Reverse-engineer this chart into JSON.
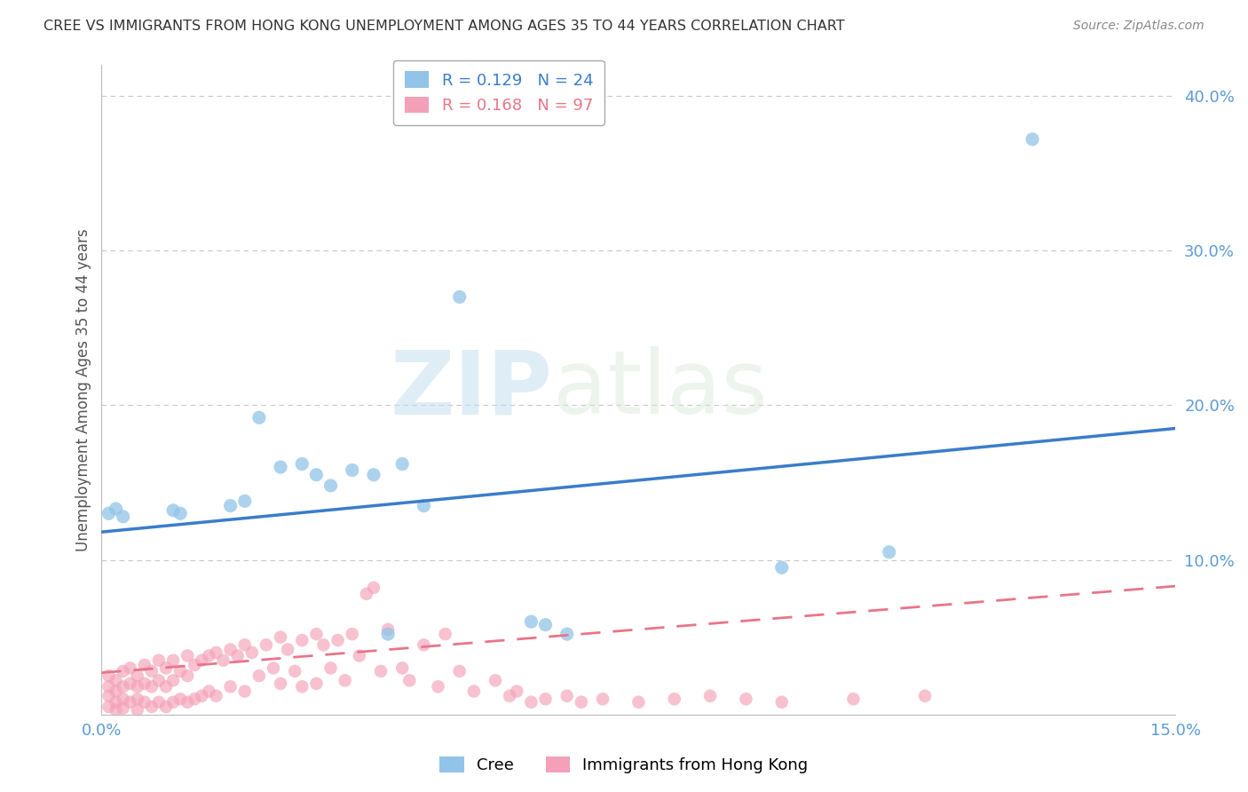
{
  "title": "CREE VS IMMIGRANTS FROM HONG KONG UNEMPLOYMENT AMONG AGES 35 TO 44 YEARS CORRELATION CHART",
  "source": "Source: ZipAtlas.com",
  "ylabel": "Unemployment Among Ages 35 to 44 years",
  "xlim": [
    0.0,
    0.15
  ],
  "ylim": [
    0.0,
    0.42
  ],
  "xtick_vals": [
    0.0,
    0.05,
    0.1,
    0.15
  ],
  "xtick_labels": [
    "0.0%",
    "",
    "",
    "15.0%"
  ],
  "ytick_vals": [
    0.0,
    0.1,
    0.2,
    0.3,
    0.4
  ],
  "ytick_labels": [
    "",
    "10.0%",
    "20.0%",
    "30.0%",
    "40.0%"
  ],
  "background_color": "#ffffff",
  "title_color": "#333333",
  "grid_color": "#c8c8c8",
  "cree_color": "#91c4e8",
  "hk_color": "#f4a0b8",
  "cree_line_color": "#3a7dc9",
  "hk_line_color": "#e8758a",
  "cree_R": 0.129,
  "cree_N": 24,
  "hk_R": 0.168,
  "hk_N": 97,
  "cree_scatter_x": [
    0.001,
    0.002,
    0.003,
    0.01,
    0.011,
    0.018,
    0.02,
    0.022,
    0.025,
    0.028,
    0.03,
    0.032,
    0.035,
    0.038,
    0.04,
    0.042,
    0.045,
    0.05,
    0.06,
    0.062,
    0.065,
    0.095,
    0.11,
    0.13
  ],
  "cree_scatter_y": [
    0.13,
    0.133,
    0.128,
    0.132,
    0.13,
    0.135,
    0.138,
    0.192,
    0.16,
    0.162,
    0.155,
    0.148,
    0.158,
    0.155,
    0.052,
    0.162,
    0.135,
    0.27,
    0.06,
    0.058,
    0.052,
    0.095,
    0.105,
    0.372
  ],
  "hk_scatter_x": [
    0.001,
    0.001,
    0.001,
    0.001,
    0.002,
    0.002,
    0.002,
    0.002,
    0.003,
    0.003,
    0.003,
    0.003,
    0.004,
    0.004,
    0.004,
    0.005,
    0.005,
    0.005,
    0.005,
    0.006,
    0.006,
    0.006,
    0.007,
    0.007,
    0.007,
    0.008,
    0.008,
    0.008,
    0.009,
    0.009,
    0.009,
    0.01,
    0.01,
    0.01,
    0.011,
    0.011,
    0.012,
    0.012,
    0.012,
    0.013,
    0.013,
    0.014,
    0.014,
    0.015,
    0.015,
    0.016,
    0.016,
    0.017,
    0.018,
    0.018,
    0.019,
    0.02,
    0.02,
    0.021,
    0.022,
    0.023,
    0.024,
    0.025,
    0.025,
    0.026,
    0.027,
    0.028,
    0.028,
    0.03,
    0.03,
    0.031,
    0.032,
    0.033,
    0.034,
    0.035,
    0.036,
    0.037,
    0.038,
    0.039,
    0.04,
    0.042,
    0.043,
    0.045,
    0.047,
    0.048,
    0.05,
    0.052,
    0.055,
    0.057,
    0.058,
    0.06,
    0.062,
    0.065,
    0.067,
    0.07,
    0.075,
    0.08,
    0.085,
    0.09,
    0.095,
    0.105,
    0.115
  ],
  "hk_scatter_y": [
    0.025,
    0.018,
    0.012,
    0.005,
    0.022,
    0.015,
    0.008,
    0.003,
    0.028,
    0.018,
    0.01,
    0.004,
    0.03,
    0.02,
    0.008,
    0.025,
    0.018,
    0.01,
    0.003,
    0.032,
    0.02,
    0.008,
    0.028,
    0.018,
    0.005,
    0.035,
    0.022,
    0.008,
    0.03,
    0.018,
    0.005,
    0.035,
    0.022,
    0.008,
    0.028,
    0.01,
    0.038,
    0.025,
    0.008,
    0.032,
    0.01,
    0.035,
    0.012,
    0.038,
    0.015,
    0.04,
    0.012,
    0.035,
    0.042,
    0.018,
    0.038,
    0.045,
    0.015,
    0.04,
    0.025,
    0.045,
    0.03,
    0.05,
    0.02,
    0.042,
    0.028,
    0.048,
    0.018,
    0.052,
    0.02,
    0.045,
    0.03,
    0.048,
    0.022,
    0.052,
    0.038,
    0.078,
    0.082,
    0.028,
    0.055,
    0.03,
    0.022,
    0.045,
    0.018,
    0.052,
    0.028,
    0.015,
    0.022,
    0.012,
    0.015,
    0.008,
    0.01,
    0.012,
    0.008,
    0.01,
    0.008,
    0.01,
    0.012,
    0.01,
    0.008,
    0.01,
    0.012
  ],
  "watermark_zip": "ZIP",
  "watermark_atlas": "atlas",
  "legend_cree_label": "Cree",
  "legend_hk_label": "Immigrants from Hong Kong",
  "axis_tick_color": "#5b9bd5",
  "ylabel_color": "#555555",
  "cree_line_y0": 0.118,
  "cree_line_y1": 0.185,
  "hk_line_y0": 0.027,
  "hk_line_y1": 0.083
}
